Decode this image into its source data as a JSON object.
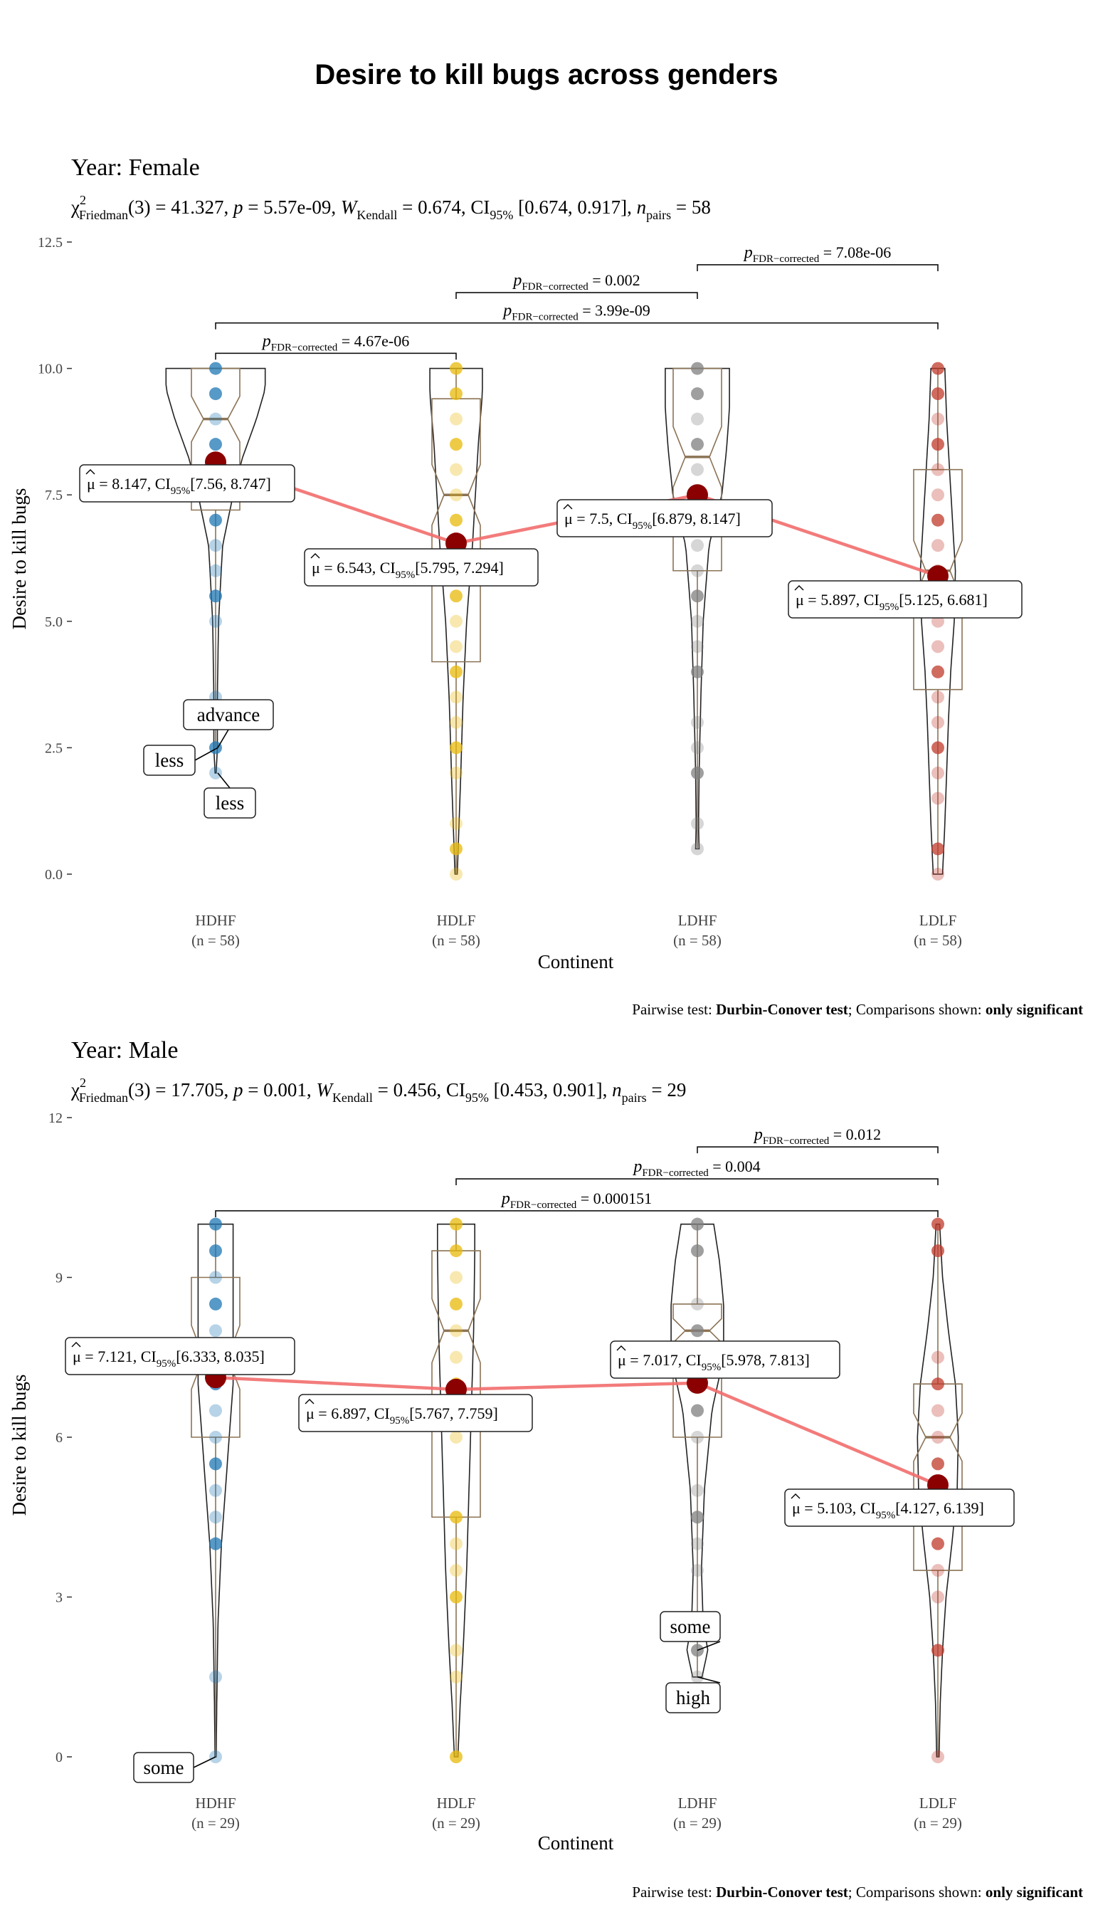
{
  "title": "Desire to kill bugs across genders",
  "panels": [
    {
      "heading": "Year: Female",
      "stats": {
        "chi": "χ",
        "chi_sup": "2",
        "chi_sub": "Friedman",
        "part1": "(3) = 41.327, ",
        "p_sym": "p",
        "part2": " = 5.57e-09, ",
        "w_sym": "W",
        "w_sub": "Kendall",
        "part3": " = 0.674, CI",
        "ci_sub": "95%",
        "part4": " [0.674, 0.917], ",
        "n_sym": "n",
        "n_sub": "pairs",
        "part5": " = 58"
      },
      "caption": {
        "prefix": "Pairwise test: ",
        "test": "Durbin-Conover test",
        "mid": "; Comparisons shown: ",
        "shown": "only significant"
      },
      "xlabel": "Continent",
      "ylabel": "Desire to kill bugs",
      "n_labels": [
        "(n = 58)",
        "(n = 58)",
        "(n = 58)",
        "(n = 58)"
      ]
    },
    {
      "heading": "Year: Male",
      "stats": {
        "chi": "χ",
        "chi_sup": "2",
        "chi_sub": "Friedman",
        "part1": "(3) = 17.705, ",
        "p_sym": "p",
        "part2": " = 0.001, ",
        "w_sym": "W",
        "w_sub": "Kendall",
        "part3": " = 0.456, CI",
        "ci_sub": "95%",
        "part4": " [0.453, 0.901], ",
        "n_sym": "n",
        "n_sub": "pairs",
        "part5": " = 29"
      },
      "caption": {
        "prefix": "Pairwise test: ",
        "test": "Durbin-Conover test",
        "mid": "; Comparisons shown: ",
        "shown": "only significant"
      },
      "xlabel": "Continent",
      "ylabel": "Desire to kill bugs",
      "n_labels": [
        "(n = 29)",
        "(n = 29)",
        "(n = 29)",
        "(n = 29)"
      ]
    }
  ],
  "chart_data": [
    {
      "type": "violin-box-scatter",
      "facet": "Year: Female",
      "categories": [
        "HDHF",
        "HDLF",
        "LDHF",
        "LDLF"
      ],
      "colors": [
        "#1f77b4",
        "#e8b90a",
        "#7f7f7f",
        "#c0392b"
      ],
      "ylim": [
        0,
        12.5
      ],
      "yticks": [
        0,
        2.5,
        5,
        7.5,
        10,
        12.5
      ],
      "ytick_labels": [
        "0.0",
        "2.5",
        "5.0",
        "7.5",
        "10.0",
        "12.5"
      ],
      "grid": false,
      "points": [
        [
          10,
          9.5,
          9,
          8.5,
          8,
          7.5,
          7,
          6.5,
          6,
          5.5,
          5,
          3.5,
          2.5,
          2
        ],
        [
          10,
          9.5,
          9,
          8.5,
          8,
          7.5,
          7,
          6.5,
          6,
          5.5,
          5,
          4.5,
          4,
          3.5,
          3,
          2.5,
          2,
          1,
          0.5,
          0
        ],
        [
          10,
          9.5,
          9,
          8.5,
          8,
          7.5,
          7,
          6.5,
          6,
          5.5,
          5,
          4.5,
          4,
          3,
          2.5,
          2,
          1,
          0.5
        ],
        [
          10,
          9.5,
          9,
          8.5,
          8,
          7.5,
          7,
          6.5,
          6,
          5.5,
          5,
          4.5,
          4,
          3.5,
          3,
          2.5,
          2,
          1.5,
          0.5,
          0
        ]
      ],
      "box": [
        {
          "q1": 7.2,
          "median": 9.0,
          "q3": 10.0,
          "wmin": 2.5,
          "wmax": 10
        },
        {
          "q1": 4.2,
          "median": 7.5,
          "q3": 9.4,
          "wmin": 0,
          "wmax": 10
        },
        {
          "q1": 6.0,
          "median": 8.25,
          "q3": 10.0,
          "wmin": 0.5,
          "wmax": 10
        },
        {
          "q1": 3.65,
          "median": 6.0,
          "q3": 8.0,
          "wmin": 0,
          "wmax": 10
        }
      ],
      "violin": [
        {
          "min": 2.0,
          "max": 10,
          "dens": [
            [
              2.0,
              0.01
            ],
            [
              2.5,
              0.03
            ],
            [
              3.5,
              0.03
            ],
            [
              5.0,
              0.05
            ],
            [
              6.5,
              0.12
            ],
            [
              7.5,
              0.3
            ],
            [
              8.2,
              0.45
            ],
            [
              9.0,
              0.7
            ],
            [
              9.6,
              0.85
            ],
            [
              10,
              0.85
            ]
          ]
        },
        {
          "min": 0,
          "max": 10,
          "dens": [
            [
              0,
              0.02
            ],
            [
              1,
              0.05
            ],
            [
              2,
              0.08
            ],
            [
              3.5,
              0.12
            ],
            [
              5,
              0.18
            ],
            [
              6.5,
              0.28
            ],
            [
              7.5,
              0.33
            ],
            [
              8.5,
              0.38
            ],
            [
              9.5,
              0.45
            ],
            [
              10,
              0.45
            ]
          ]
        },
        {
          "min": 0.5,
          "max": 10,
          "dens": [
            [
              0.5,
              0.03
            ],
            [
              1,
              0.02
            ],
            [
              2,
              0.03
            ],
            [
              3.5,
              0.06
            ],
            [
              5,
              0.1
            ],
            [
              6.5,
              0.2
            ],
            [
              7.5,
              0.42
            ],
            [
              8.4,
              0.5
            ],
            [
              9.2,
              0.55
            ],
            [
              10,
              0.55
            ]
          ]
        },
        {
          "min": 0,
          "max": 10,
          "dens": [
            [
              0,
              0.08
            ],
            [
              1,
              0.12
            ],
            [
              2,
              0.15
            ],
            [
              3,
              0.18
            ],
            [
              4,
              0.22
            ],
            [
              5,
              0.28
            ],
            [
              6,
              0.3
            ],
            [
              7,
              0.25
            ],
            [
              8,
              0.2
            ],
            [
              9,
              0.15
            ],
            [
              10,
              0.12
            ]
          ]
        }
      ],
      "means": [
        8.147,
        6.543,
        7.5,
        5.897
      ],
      "mean_labels": [
        {
          "v": " = 8.147, CI",
          "ci": "[7.56, 8.747]"
        },
        {
          "v": " = 6.543, CI",
          "ci": "[5.795, 7.294]"
        },
        {
          "v": " = 7.5, CI",
          "ci": "[6.879, 8.147]"
        },
        {
          "v": " = 5.897, CI",
          "ci": "[5.125, 6.681]"
        }
      ],
      "comparisons": [
        {
          "from": 0,
          "to": 1,
          "y": 10.3,
          "label": "4.67e-06"
        },
        {
          "from": 0,
          "to": 3,
          "y": 10.9,
          "label": "3.99e-09"
        },
        {
          "from": 1,
          "to": 2,
          "y": 11.5,
          "label": "0.002"
        },
        {
          "from": 2,
          "to": 3,
          "y": 12.05,
          "label": "7.08e-06"
        }
      ],
      "outlier_labels": [
        {
          "cat": 0,
          "y": 2.5,
          "text": "advance"
        },
        {
          "cat": 0,
          "y": 2.5,
          "text": "less"
        },
        {
          "cat": 0,
          "y": 2.0,
          "text": "less"
        }
      ]
    },
    {
      "type": "violin-box-scatter",
      "facet": "Year: Male",
      "categories": [
        "HDHF",
        "HDLF",
        "LDHF",
        "LDLF"
      ],
      "colors": [
        "#1f77b4",
        "#e8b90a",
        "#7f7f7f",
        "#c0392b"
      ],
      "ylim": [
        0,
        12
      ],
      "yticks": [
        0,
        3,
        6,
        9,
        12
      ],
      "ytick_labels": [
        "0",
        "3",
        "6",
        "9",
        "12"
      ],
      "grid": false,
      "points": [
        [
          10,
          9.5,
          9,
          8.5,
          8,
          7.5,
          7,
          6.5,
          6,
          5.5,
          5,
          4.5,
          4,
          1.5,
          0
        ],
        [
          10,
          9.5,
          9,
          8.5,
          8,
          7.5,
          7,
          6.5,
          6,
          4.5,
          4,
          3.5,
          3,
          2,
          1.5,
          0
        ],
        [
          10,
          9.5,
          8.5,
          8,
          7.5,
          7,
          6.5,
          6,
          5,
          4.5,
          4,
          3.5,
          2,
          1.5
        ],
        [
          10,
          9.5,
          7.5,
          7,
          6.5,
          6,
          5.5,
          5,
          4.5,
          4,
          3.5,
          3,
          2,
          0
        ]
      ],
      "box": [
        {
          "q1": 6.0,
          "median": 7.5,
          "q3": 9.0,
          "wmin": 0,
          "wmax": 10
        },
        {
          "q1": 4.5,
          "median": 8.0,
          "q3": 9.5,
          "wmin": 0,
          "wmax": 10
        },
        {
          "q1": 6.0,
          "median": 8.0,
          "q3": 8.5,
          "wmin": 1.5,
          "wmax": 10
        },
        {
          "q1": 3.5,
          "median": 6.0,
          "q3": 7.0,
          "wmin": 0,
          "wmax": 10
        }
      ],
      "violin": [
        {
          "min": 0,
          "max": 10,
          "dens": [
            [
              0,
              0.01
            ],
            [
              1,
              0.02
            ],
            [
              2.5,
              0.04
            ],
            [
              4,
              0.1
            ],
            [
              5.5,
              0.2
            ],
            [
              7,
              0.3
            ],
            [
              8.5,
              0.3
            ],
            [
              9.5,
              0.3
            ],
            [
              10,
              0.3
            ]
          ]
        },
        {
          "min": 0,
          "max": 10,
          "dens": [
            [
              0,
              0.03
            ],
            [
              1,
              0.07
            ],
            [
              2,
              0.12
            ],
            [
              3.5,
              0.18
            ],
            [
              5,
              0.22
            ],
            [
              6.5,
              0.26
            ],
            [
              8,
              0.3
            ],
            [
              9.5,
              0.32
            ],
            [
              10,
              0.32
            ]
          ]
        },
        {
          "min": 1.5,
          "max": 10,
          "dens": [
            [
              1.5,
              0.08
            ],
            [
              2,
              0.18
            ],
            [
              2.5,
              0.1
            ],
            [
              3.5,
              0.07
            ],
            [
              5,
              0.12
            ],
            [
              6.5,
              0.25
            ],
            [
              7.5,
              0.45
            ],
            [
              8.5,
              0.45
            ],
            [
              9.3,
              0.38
            ],
            [
              10,
              0.28
            ]
          ]
        },
        {
          "min": 0,
          "max": 10,
          "dens": [
            [
              0,
              0.02
            ],
            [
              1,
              0.04
            ],
            [
              2,
              0.08
            ],
            [
              3,
              0.14
            ],
            [
              4,
              0.24
            ],
            [
              5,
              0.33
            ],
            [
              6,
              0.35
            ],
            [
              7,
              0.3
            ],
            [
              8,
              0.18
            ],
            [
              9,
              0.08
            ],
            [
              10,
              0.03
            ]
          ]
        }
      ],
      "means": [
        7.121,
        6.897,
        7.017,
        5.103
      ],
      "mean_labels": [
        {
          "v": " = 7.121, CI",
          "ci": "[6.333, 8.035]"
        },
        {
          "v": " = 6.897, CI",
          "ci": "[5.767, 7.759]"
        },
        {
          "v": " = 7.017, CI",
          "ci": "[5.978, 7.813]"
        },
        {
          "v": " = 5.103, CI",
          "ci": "[4.127, 6.139]"
        }
      ],
      "comparisons": [
        {
          "from": 0,
          "to": 3,
          "y": 10.25,
          "label": "0.000151"
        },
        {
          "from": 1,
          "to": 3,
          "y": 10.85,
          "label": "0.004"
        },
        {
          "from": 2,
          "to": 3,
          "y": 11.45,
          "label": "0.012"
        }
      ],
      "outlier_labels": [
        {
          "cat": 2,
          "y": 2.0,
          "text": "some"
        },
        {
          "cat": 2,
          "y": 1.5,
          "text": "high"
        },
        {
          "cat": 0,
          "y": 0,
          "text": "some"
        }
      ]
    }
  ]
}
